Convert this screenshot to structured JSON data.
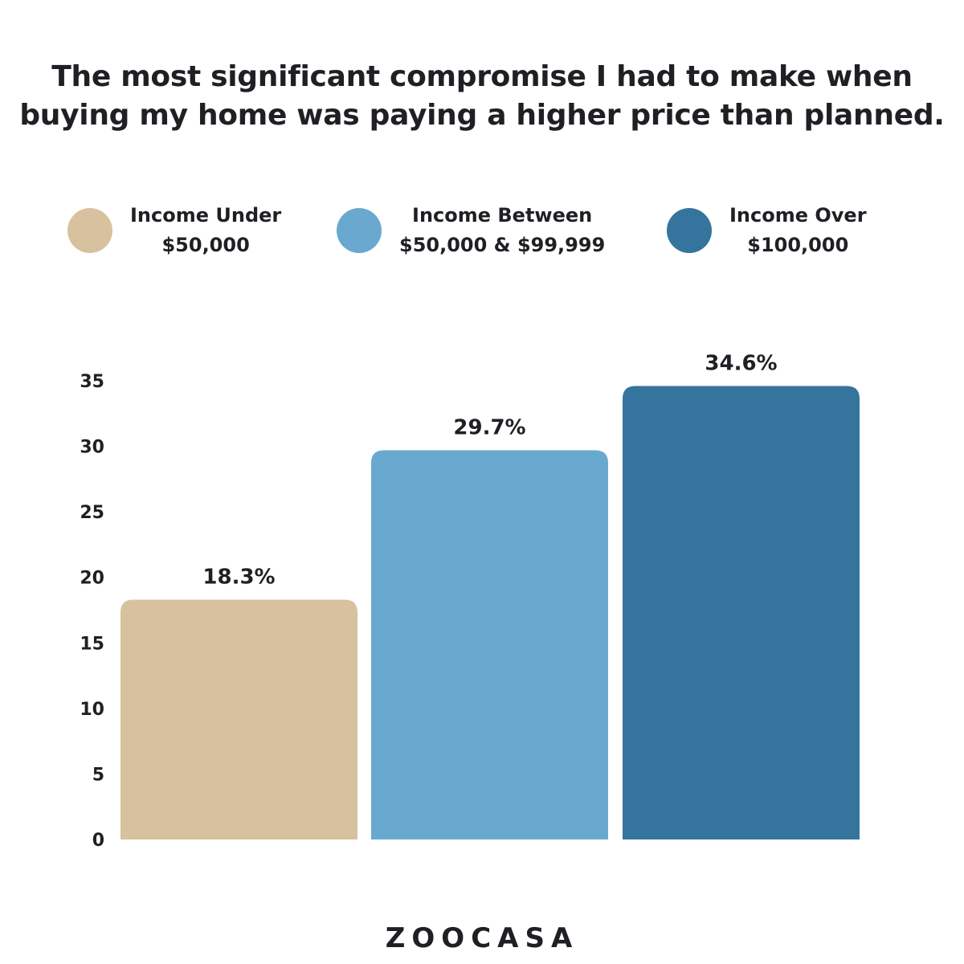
{
  "title_line1": "The most significant compromise I had to make when",
  "title_line2": "buying my home was paying a higher price than planned.",
  "logo": "ZOOCASA",
  "chart_data": {
    "type": "bar",
    "title": "The most significant compromise I had to make when buying my home was paying a higher price than planned.",
    "categories": [
      "Income Under $50,000",
      "Income Between $50,000 & $99,999",
      "Income Over $100,000"
    ],
    "values": [
      18.3,
      29.7,
      34.6
    ],
    "data_labels": [
      "18.3%",
      "29.7%",
      "34.6%"
    ],
    "colors": [
      "#d8c19e",
      "#6aa9cf",
      "#34749d"
    ],
    "legend": [
      {
        "line1": "Income Under",
        "line2": "$50,000",
        "color": "#d8c19e"
      },
      {
        "line1": "Income Between",
        "line2": "$50,000 & $99,999",
        "color": "#6aa9cf"
      },
      {
        "line1": "Income Over",
        "line2": "$100,000",
        "color": "#34749d"
      }
    ],
    "legend_position": "top",
    "yticks": [
      "0",
      "5",
      "10",
      "15",
      "20",
      "25",
      "30",
      "35"
    ],
    "ylim": [
      0,
      35
    ],
    "xlabel": "",
    "ylabel": "",
    "grid": false
  }
}
